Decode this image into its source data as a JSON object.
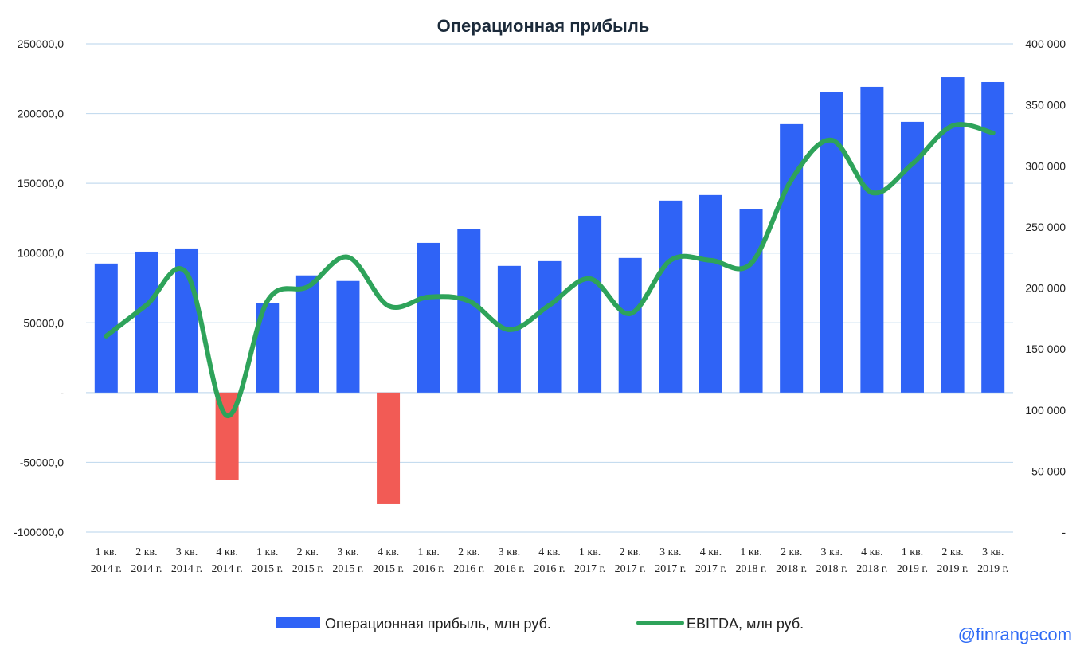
{
  "chart_data": {
    "type": "bar+line",
    "title": "Операционная прибыль",
    "categories": [
      [
        "1 кв.",
        "2014 г."
      ],
      [
        "2 кв.",
        "2014 г."
      ],
      [
        "3 кв.",
        "2014 г."
      ],
      [
        "4 кв.",
        "2014 г."
      ],
      [
        "1 кв.",
        "2015 г."
      ],
      [
        "2 кв.",
        "2015 г."
      ],
      [
        "3 кв.",
        "2015 г."
      ],
      [
        "4 кв.",
        "2015 г."
      ],
      [
        "1 кв.",
        "2016 г."
      ],
      [
        "2 кв.",
        "2016 г."
      ],
      [
        "3 кв.",
        "2016 г."
      ],
      [
        "4 кв.",
        "2016 г."
      ],
      [
        "1 кв.",
        "2017 г."
      ],
      [
        "2 кв.",
        "2017 г."
      ],
      [
        "3 кв.",
        "2017 г."
      ],
      [
        "4 кв.",
        "2017 г."
      ],
      [
        "1 кв.",
        "2018 г."
      ],
      [
        "2 кв.",
        "2018 г."
      ],
      [
        "3 кв.",
        "2018 г."
      ],
      [
        "4 кв.",
        "2018 г."
      ],
      [
        "1 кв.",
        "2019 г."
      ],
      [
        "2 кв.",
        "2019 г."
      ],
      [
        "3 кв.",
        "2019 г."
      ]
    ],
    "series": [
      {
        "name": "Операционная прибыль, млн руб.",
        "type": "bar",
        "axis": "left",
        "color": "#2f63f6",
        "negative_color": "#f25b55",
        "values": [
          92500,
          101000,
          103300,
          -62800,
          64000,
          84000,
          80000,
          -80000,
          107300,
          117000,
          90800,
          94200,
          126700,
          96500,
          137600,
          141600,
          131300,
          192400,
          215200,
          219200,
          194100,
          226000,
          222600
        ]
      },
      {
        "name": "EBITDA, млн руб.",
        "type": "line",
        "smooth": true,
        "axis": "right",
        "color": "#2ea35a",
        "values": [
          160600,
          186000,
          212000,
          95300,
          189300,
          201000,
          225200,
          185400,
          192600,
          189300,
          165800,
          186000,
          207600,
          178900,
          222600,
          222600,
          220000,
          288500,
          321100,
          278100,
          301600,
          332900,
          327000
        ]
      }
    ],
    "left_axis": {
      "range": [
        -100000,
        250000
      ],
      "ticks": [
        250000,
        200000,
        150000,
        100000,
        50000,
        0,
        -50000,
        -100000
      ],
      "tick_labels": [
        "250000,0",
        "200000,0",
        "150000,0",
        "100000,0",
        "50000,0",
        "-",
        "-50000,0",
        "-100000,0"
      ]
    },
    "right_axis": {
      "range": [
        0,
        400000
      ],
      "ticks": [
        400000,
        350000,
        300000,
        250000,
        200000,
        150000,
        100000,
        50000,
        0
      ],
      "tick_labels": [
        "400 000",
        "350 000",
        "300 000",
        "250 000",
        "200 000",
        "150 000",
        "100 000",
        "50 000",
        "-"
      ]
    },
    "grid": true,
    "gridline_color": "#c5dcef",
    "legend_position": "bottom"
  },
  "watermark": "@finrangecom"
}
